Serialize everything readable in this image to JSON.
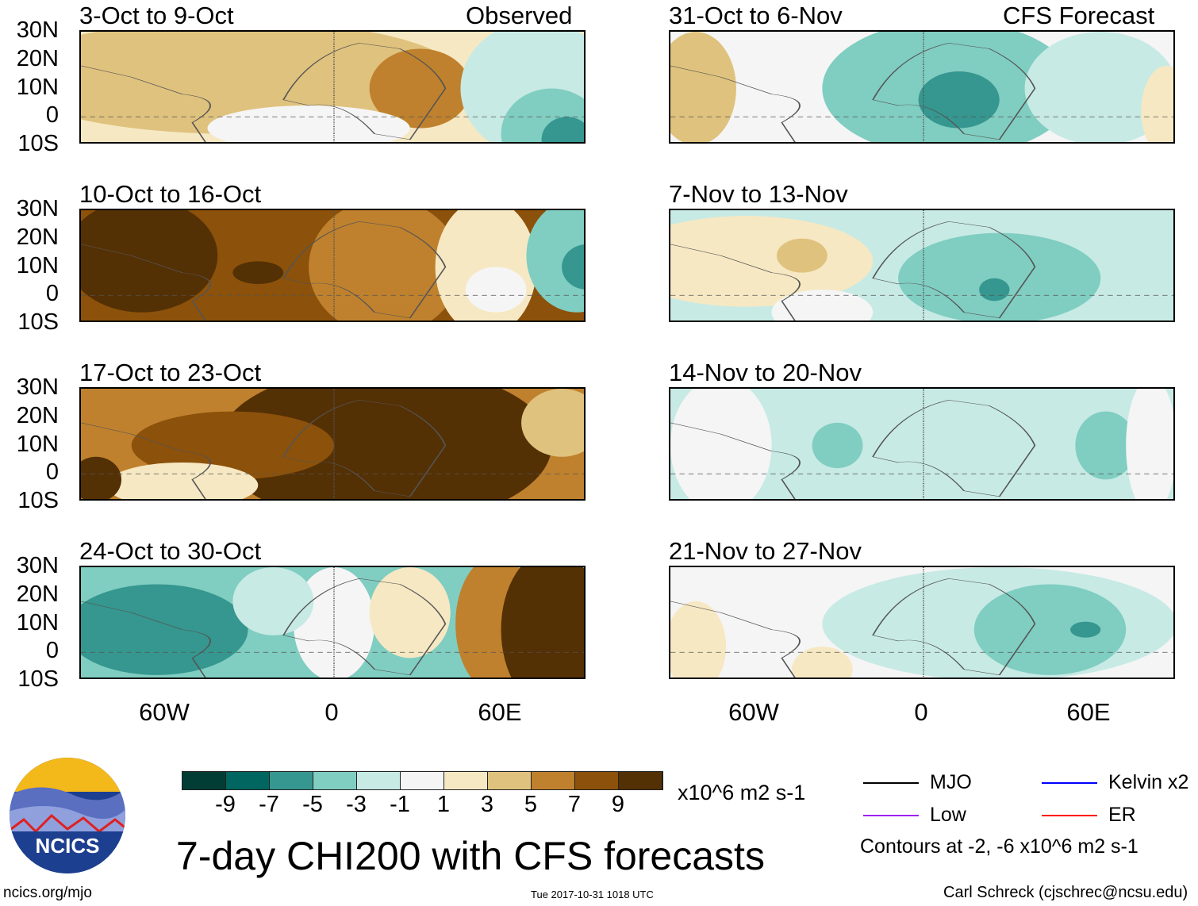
{
  "header": {
    "observed_label": "Observed",
    "forecast_label": "CFS Forecast"
  },
  "panels_left": [
    {
      "title": "3-Oct to 9-Oct"
    },
    {
      "title": "10-Oct to 16-Oct"
    },
    {
      "title": "17-Oct to 23-Oct"
    },
    {
      "title": "24-Oct to 30-Oct"
    }
  ],
  "panels_right": [
    {
      "title": "31-Oct to 6-Nov"
    },
    {
      "title": "7-Nov to 13-Nov"
    },
    {
      "title": "14-Nov to 20-Nov"
    },
    {
      "title": "21-Nov to 27-Nov"
    }
  ],
  "lat_labels": [
    "30N",
    "20N",
    "10N",
    "0",
    "10S"
  ],
  "lon_labels": [
    "60W",
    "0",
    "60E"
  ],
  "colorbar": {
    "colors": [
      "#013d35",
      "#026660",
      "#35978f",
      "#80cdc1",
      "#c7eae5",
      "#f5f5f5",
      "#f6e8c3",
      "#dfc27d",
      "#bf812d",
      "#8c510a",
      "#543005"
    ],
    "labels": [
      "-9",
      "-7",
      "-5",
      "-3",
      "-1",
      "1",
      "3",
      "5",
      "7",
      "9"
    ],
    "units": "x10^6 m2 s-1"
  },
  "legend": {
    "items": [
      {
        "label": "MJO",
        "color": "#000000"
      },
      {
        "label": "Kelvin x2",
        "color": "#0000ff"
      },
      {
        "label": "Low",
        "color": "#a020f0"
      },
      {
        "label": "ER",
        "color": "#ff0000"
      }
    ],
    "contours_note": "Contours at -2, -6 x10^6 m2 s-1"
  },
  "main_title": "7-day CHI200 with CFS forecasts",
  "logo_text": "NCICS",
  "footer": {
    "url": "ncics.org/mjo",
    "timestamp": "Tue 2017-10-31 1018 UTC",
    "author": "Carl Schreck (cjschrec@ncsu.edu)"
  }
}
